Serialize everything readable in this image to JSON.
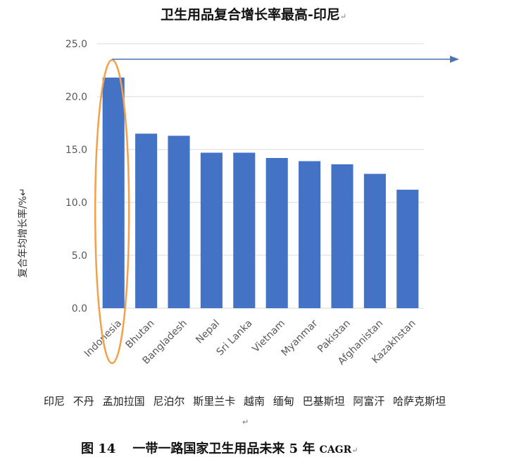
{
  "header": {
    "title": "卫生用品复合增长率最高-印尼",
    "return_mark": "↵"
  },
  "chart_data": {
    "type": "bar",
    "title": "卫生用品复合增长率最高-印尼",
    "ylabel": "复合年均增长率/%↵",
    "xlabel": "",
    "categories": [
      "Indonesia",
      "Bhutan",
      "Bangladesh",
      "Nepal",
      "Sri Lanka",
      "Vietnam",
      "Myanmar",
      "Pakistan",
      "Afghanistan",
      "Kazakhstan"
    ],
    "values": [
      21.8,
      16.5,
      16.3,
      14.7,
      14.7,
      14.2,
      13.9,
      13.6,
      12.7,
      11.2
    ],
    "ylim": [
      0,
      25
    ],
    "yticks": [
      "0.0",
      "5.0",
      "10.0",
      "15.0",
      "20.0",
      "25.0"
    ],
    "grid": true,
    "highlight": "Indonesia",
    "bar_color": "#4472C4",
    "highlight_color": "#F4A04A"
  },
  "country_names_cn": [
    "印尼",
    "不丹",
    "孟加拉国",
    "尼泊尔",
    "斯里兰卡",
    "越南",
    "缅甸",
    "巴基斯坦",
    "阿富汗",
    "哈萨克斯坦"
  ],
  "caption": {
    "figure": "图 14",
    "text": "一带一路国家卫生用品未来 5 年",
    "cagr": "CAGR",
    "return_mark": "↵"
  },
  "para_mark": "↵"
}
